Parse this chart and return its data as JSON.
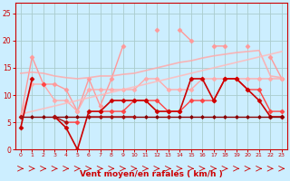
{
  "x": [
    0,
    1,
    2,
    3,
    4,
    5,
    6,
    7,
    8,
    9,
    10,
    11,
    12,
    13,
    14,
    15,
    16,
    17,
    18,
    19,
    20,
    21,
    22,
    23
  ],
  "series": [
    {
      "label": "light_pink_top",
      "color": "#ff9999",
      "alpha": 1.0,
      "linewidth": 1.0,
      "marker": "D",
      "markersize": 2.5,
      "values": [
        6,
        17,
        12,
        12,
        11,
        7,
        13,
        8,
        13,
        19,
        null,
        null,
        22,
        null,
        22,
        20,
        null,
        19,
        19,
        null,
        19,
        null,
        17,
        13
      ]
    },
    {
      "label": "light_pink_mid",
      "color": "#ffaaaa",
      "alpha": 1.0,
      "linewidth": 1.0,
      "marker": "D",
      "markersize": 2.5,
      "values": [
        6,
        12,
        12,
        9,
        9,
        7,
        11,
        11,
        11,
        11,
        11,
        13,
        13,
        11,
        11,
        11,
        13,
        13,
        13,
        13,
        13,
        13,
        13,
        13
      ]
    },
    {
      "label": "trend_upper",
      "color": "#ffaaaa",
      "alpha": 0.85,
      "linewidth": 1.2,
      "marker": null,
      "markersize": 0,
      "values": [
        14,
        14.2,
        14.0,
        13.5,
        13.2,
        13.0,
        13.2,
        13.5,
        13.5,
        13.8,
        14.0,
        14.5,
        15.0,
        15.5,
        16.0,
        16.3,
        16.8,
        17.2,
        17.5,
        17.8,
        18.0,
        18.2,
        13.5,
        13.2
      ]
    },
    {
      "label": "trend_lower",
      "color": "#ffbbbb",
      "alpha": 0.85,
      "linewidth": 1.2,
      "marker": null,
      "markersize": 0,
      "values": [
        6.5,
        7.0,
        7.5,
        8.0,
        8.5,
        9.0,
        9.5,
        10.0,
        10.5,
        11.0,
        11.5,
        12.0,
        12.5,
        13.0,
        13.5,
        14.0,
        14.5,
        15.0,
        15.5,
        16.0,
        16.5,
        17.0,
        17.5,
        18.0
      ]
    },
    {
      "label": "medium_red",
      "color": "#ff4444",
      "alpha": 1.0,
      "linewidth": 1.0,
      "marker": "D",
      "markersize": 2.5,
      "values": [
        6,
        null,
        12,
        null,
        5,
        5,
        null,
        7,
        7,
        7,
        9,
        9,
        9,
        7,
        7,
        9,
        9,
        9,
        13,
        13,
        11,
        11,
        7,
        7
      ]
    },
    {
      "label": "dark_red_main",
      "color": "#cc0000",
      "alpha": 1.0,
      "linewidth": 1.2,
      "marker": "D",
      "markersize": 2.5,
      "values": [
        4,
        13,
        null,
        6,
        4,
        0,
        7,
        7,
        9,
        9,
        9,
        9,
        7,
        7,
        7,
        13,
        13,
        9,
        13,
        13,
        11,
        9,
        6,
        6
      ]
    },
    {
      "label": "dark_red_flat",
      "color": "#880000",
      "alpha": 1.0,
      "linewidth": 1.0,
      "marker": "D",
      "markersize": 2.0,
      "values": [
        6,
        6,
        6,
        6,
        6,
        6,
        6,
        6,
        6,
        6,
        6,
        6,
        6,
        6,
        6,
        6,
        6,
        6,
        6,
        6,
        6,
        6,
        6,
        6
      ]
    },
    {
      "label": "dark_red_line2",
      "color": "#aa1111",
      "alpha": 1.0,
      "linewidth": 1.0,
      "marker": "D",
      "markersize": 2.0,
      "values": [
        6,
        null,
        null,
        6,
        5,
        null,
        6,
        6,
        6,
        6,
        6,
        null,
        null,
        6,
        null,
        null,
        null,
        null,
        null,
        null,
        null,
        null,
        null,
        null
      ]
    }
  ],
  "xlabel": "Vent moyen/en rafales ( km/h )",
  "xlim": [
    -0.5,
    23.5
  ],
  "ylim": [
    0,
    27
  ],
  "yticks": [
    0,
    5,
    10,
    15,
    20,
    25
  ],
  "xticks": [
    0,
    1,
    2,
    3,
    4,
    5,
    6,
    7,
    8,
    9,
    10,
    11,
    12,
    13,
    14,
    15,
    16,
    17,
    18,
    19,
    20,
    21,
    22,
    23
  ],
  "bg_color": "#cceeff",
  "grid_color": "#aacccc",
  "xlabel_color": "#cc0000",
  "tick_color": "#cc0000",
  "arrow_color": "#cc0000",
  "spine_color": "#cc0000"
}
